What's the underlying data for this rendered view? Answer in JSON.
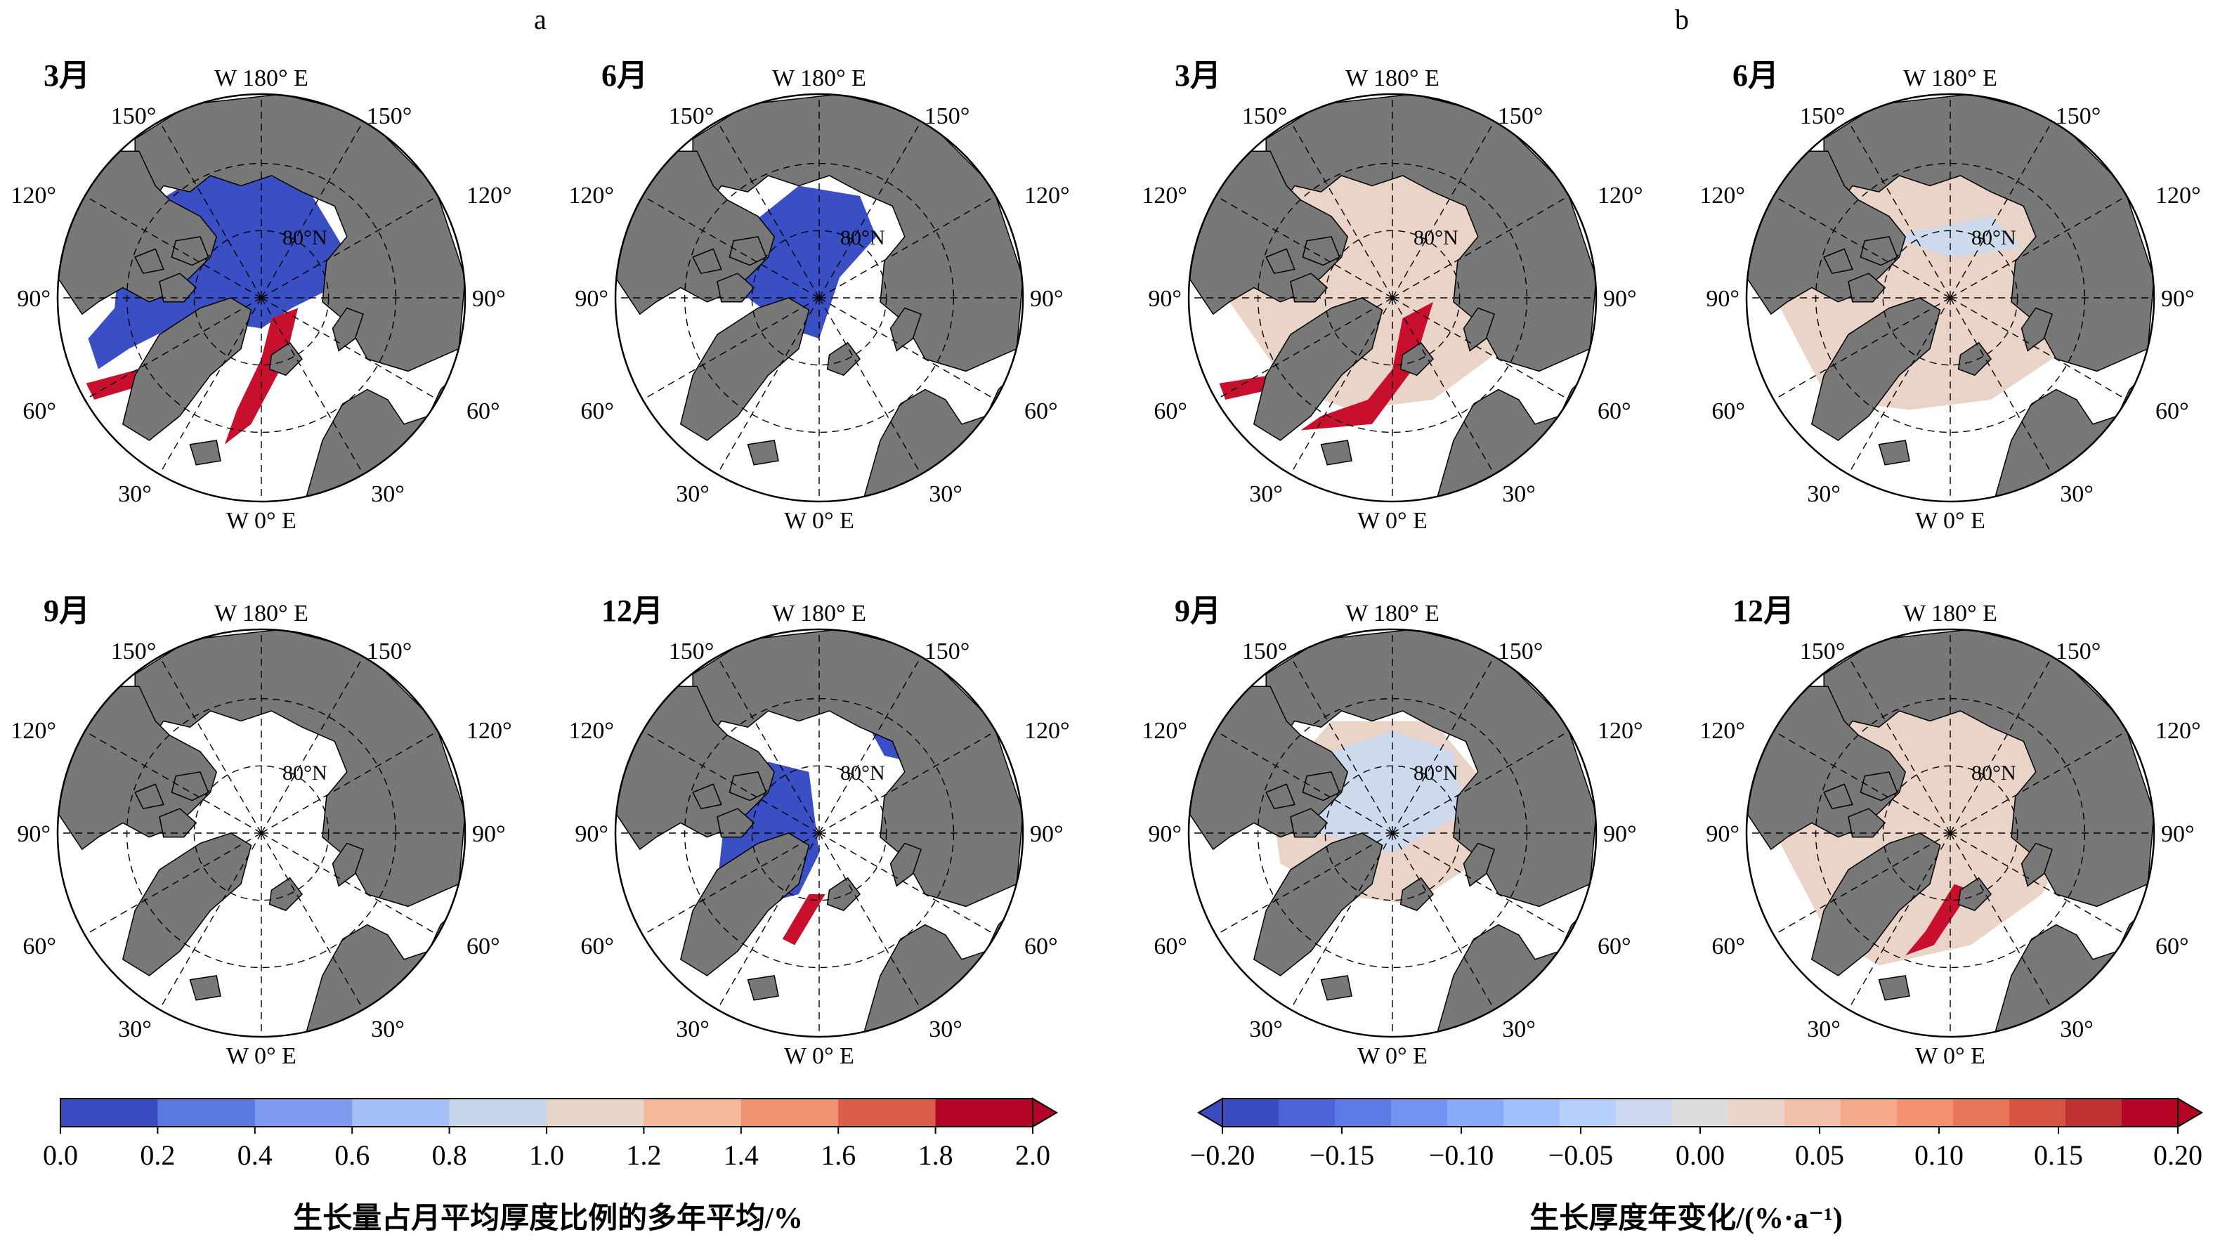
{
  "panels": {
    "a": "a",
    "b": "b"
  },
  "months": [
    "3月",
    "6月",
    "9月",
    "12月"
  ],
  "map_labels": {
    "top": "W 180° E",
    "bottom": "W 0° E",
    "lon_150": "150°",
    "lon_120": "120°",
    "lon_90": "90°",
    "lon_60": "60°",
    "lon_30": "30°",
    "lat_80": "80°N"
  },
  "colors": {
    "land": "#787878",
    "ocean": "#ffffff",
    "ice_blue": "#3a4fc4",
    "ice_red": "#c8102e",
    "trend_fill": "#ead4c8",
    "trend_cool": "#cdd9ec"
  },
  "colorbar_left": {
    "title": "生长量占月平均厚度比例的多年平均/%",
    "ticks": [
      "0.0",
      "0.2",
      "0.4",
      "0.6",
      "0.8",
      "1.0",
      "1.2",
      "1.4",
      "1.6",
      "1.8",
      "2.0"
    ],
    "colors": [
      "#3b4cc0",
      "#5a78e0",
      "#7d9cf0",
      "#a3bff6",
      "#c7d5ec",
      "#e7d5c9",
      "#f4b89b",
      "#ee9272",
      "#db5c49",
      "#b40426"
    ],
    "extend": "max"
  },
  "colorbar_right": {
    "title": "生长厚度年变化/(%·a⁻¹)",
    "ticks": [
      "−0.20",
      "−0.15",
      "−0.10",
      "−0.05",
      "0.00",
      "0.05",
      "0.10",
      "0.15",
      "0.20"
    ],
    "colors": [
      "#3b4cc0",
      "#4b63d4",
      "#5d7be6",
      "#7393f3",
      "#89a9fa",
      "#a0bffd",
      "#b6cffb",
      "#cbd8ef",
      "#dcdddd",
      "#ead4c8",
      "#f2c0a8",
      "#f6a989",
      "#f3906f",
      "#e97558",
      "#d65444",
      "#bf3030",
      "#b40426"
    ],
    "extend": "both"
  },
  "layers": {
    "a_3": "thick_blue",
    "a_6": "mid_blue",
    "a_9": "none",
    "a_12": "small_blue",
    "b_3": "trend_red",
    "b_6": "trend_light",
    "b_9": "trend_cool",
    "b_12": "trend_red_small"
  }
}
